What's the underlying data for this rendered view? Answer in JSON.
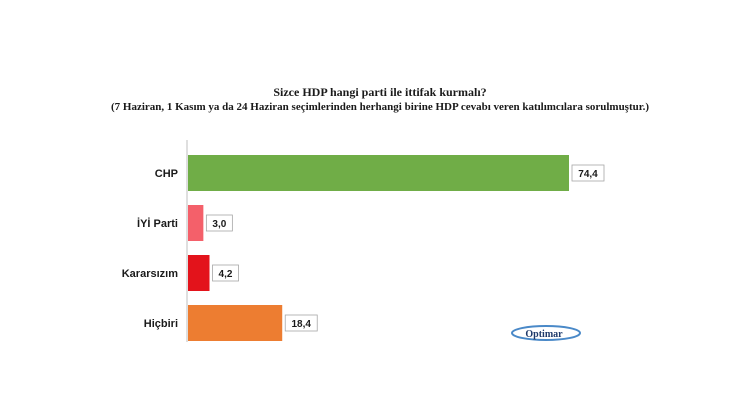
{
  "chart_data": {
    "type": "bar",
    "orientation": "horizontal",
    "title": "Sizce HDP hangi parti ile ittifak kurmalı?",
    "subtitle": "(7 Haziran, 1 Kasım ya da 24 Haziran seçimlerinden herhangi birine HDP cevabı veren katılımcılara sorulmuştur.)",
    "categories": [
      "CHP",
      "İYİ Parti",
      "Kararsızım",
      "Hiçbiri"
    ],
    "values": [
      74.4,
      3.0,
      4.2,
      18.4
    ],
    "value_labels": [
      "74,4",
      "3,0",
      "4,2",
      "18,4"
    ],
    "colors": [
      "#70ad47",
      "#f4606a",
      "#e3131b",
      "#ed7d31"
    ],
    "xlim": [
      0,
      100
    ],
    "grid": false,
    "legend": "none"
  },
  "logo": {
    "text": "Optimar"
  }
}
